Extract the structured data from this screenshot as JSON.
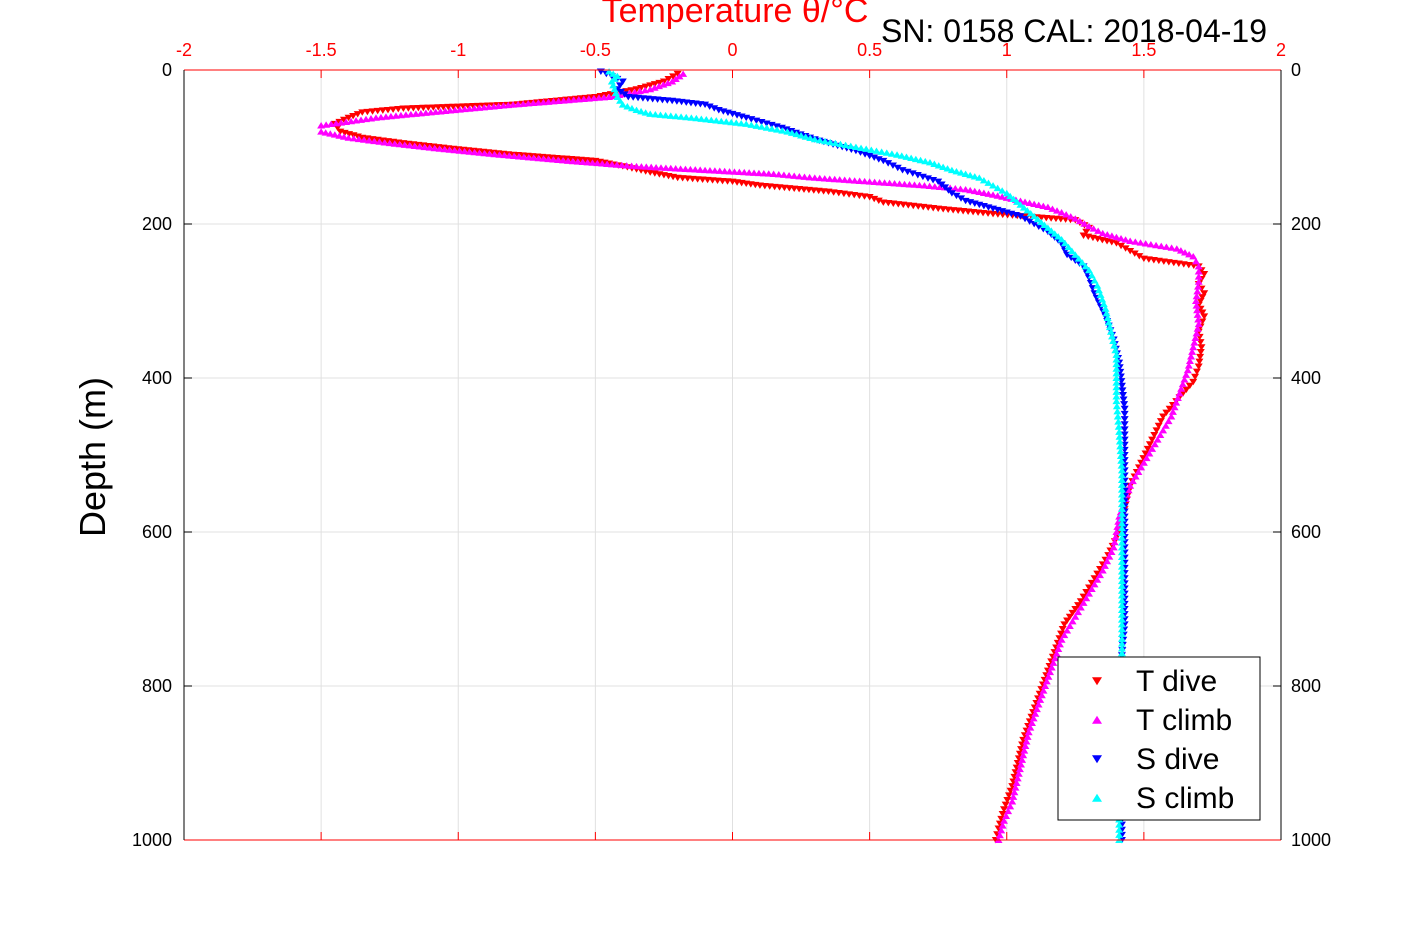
{
  "chart_data": {
    "type": "scatter",
    "title": "Temperature θ/°C",
    "subtitle": "SN: 0158  CAL: 2018-04-19",
    "xlabel": "Temperature θ/°C",
    "ylabel": "Depth (m)",
    "xlim": [
      -2,
      2
    ],
    "ylim": [
      0,
      1000
    ],
    "y_inverted": true,
    "xticks": [
      "-2",
      "-1.5",
      "-1",
      "-0.5",
      "0",
      "0.5",
      "1",
      "1.5",
      "2"
    ],
    "yticks": [
      "0",
      "200",
      "400",
      "600",
      "800",
      "1000"
    ],
    "grid": true,
    "legend_position": "bottom-right",
    "colors": {
      "axis_top": "#ff0000",
      "t_dive": "#ff0000",
      "t_climb": "#ff00ff",
      "s_dive": "#0000ff",
      "s_climb": "#00ffff"
    },
    "series": [
      {
        "name": "T dive",
        "marker": "triangle-down",
        "points": [
          [
            -0.2,
            5
          ],
          [
            -0.25,
            15
          ],
          [
            -0.35,
            25
          ],
          [
            -0.5,
            35
          ],
          [
            -0.8,
            45
          ],
          [
            -1.2,
            50
          ],
          [
            -1.35,
            55
          ],
          [
            -1.4,
            62
          ],
          [
            -1.45,
            70
          ],
          [
            -1.43,
            80
          ],
          [
            -1.35,
            88
          ],
          [
            -1.2,
            95
          ],
          [
            -1.0,
            103
          ],
          [
            -0.8,
            110
          ],
          [
            -0.5,
            118
          ],
          [
            -0.4,
            125
          ],
          [
            -0.3,
            133
          ],
          [
            -0.2,
            140
          ],
          [
            0,
            145
          ],
          [
            0.1,
            150
          ],
          [
            0.35,
            158
          ],
          [
            0.5,
            165
          ],
          [
            0.55,
            172
          ],
          [
            0.75,
            180
          ],
          [
            0.95,
            187
          ],
          [
            1.25,
            195
          ],
          [
            1.3,
            205
          ],
          [
            1.28,
            215
          ],
          [
            1.4,
            225
          ],
          [
            1.45,
            235
          ],
          [
            1.5,
            245
          ],
          [
            1.7,
            255
          ],
          [
            1.72,
            265
          ],
          [
            1.7,
            278
          ],
          [
            1.72,
            290
          ],
          [
            1.7,
            305
          ],
          [
            1.72,
            320
          ],
          [
            1.7,
            340
          ],
          [
            1.71,
            360
          ],
          [
            1.7,
            385
          ],
          [
            1.68,
            405
          ],
          [
            1.63,
            425
          ],
          [
            1.57,
            450
          ],
          [
            1.53,
            480
          ],
          [
            1.49,
            510
          ],
          [
            1.45,
            540
          ],
          [
            1.43,
            570
          ],
          [
            1.41,
            600
          ],
          [
            1.37,
            630
          ],
          [
            1.32,
            660
          ],
          [
            1.27,
            690
          ],
          [
            1.21,
            720
          ],
          [
            1.18,
            750
          ],
          [
            1.15,
            780
          ],
          [
            1.12,
            810
          ],
          [
            1.09,
            840
          ],
          [
            1.06,
            870
          ],
          [
            1.04,
            900
          ],
          [
            1.02,
            930
          ],
          [
            0.99,
            960
          ],
          [
            0.97,
            985
          ],
          [
            0.96,
            1000
          ]
        ]
      },
      {
        "name": "T climb",
        "marker": "triangle-up",
        "points": [
          [
            -0.18,
            5
          ],
          [
            -0.22,
            15
          ],
          [
            -0.3,
            25
          ],
          [
            -0.45,
            35
          ],
          [
            -0.8,
            45
          ],
          [
            -1.1,
            55
          ],
          [
            -1.3,
            62
          ],
          [
            -1.5,
            72
          ],
          [
            -1.5,
            80
          ],
          [
            -1.4,
            88
          ],
          [
            -1.25,
            95
          ],
          [
            -1.05,
            103
          ],
          [
            -0.85,
            110
          ],
          [
            -0.6,
            118
          ],
          [
            -0.35,
            125
          ],
          [
            -0.1,
            130
          ],
          [
            0.15,
            135
          ],
          [
            0.3,
            140
          ],
          [
            0.5,
            145
          ],
          [
            0.7,
            150
          ],
          [
            0.85,
            155
          ],
          [
            0.95,
            162
          ],
          [
            1.05,
            170
          ],
          [
            1.15,
            178
          ],
          [
            1.2,
            185
          ],
          [
            1.25,
            193
          ],
          [
            1.3,
            203
          ],
          [
            1.35,
            212
          ],
          [
            1.45,
            222
          ],
          [
            1.62,
            232
          ],
          [
            1.68,
            242
          ],
          [
            1.7,
            255
          ],
          [
            1.7,
            275
          ],
          [
            1.69,
            300
          ],
          [
            1.7,
            330
          ],
          [
            1.68,
            360
          ],
          [
            1.66,
            390
          ],
          [
            1.63,
            420
          ],
          [
            1.6,
            450
          ],
          [
            1.55,
            480
          ],
          [
            1.5,
            510
          ],
          [
            1.45,
            540
          ],
          [
            1.41,
            580
          ],
          [
            1.39,
            620
          ],
          [
            1.35,
            650
          ],
          [
            1.3,
            680
          ],
          [
            1.25,
            710
          ],
          [
            1.2,
            740
          ],
          [
            1.17,
            770
          ],
          [
            1.14,
            800
          ],
          [
            1.11,
            830
          ],
          [
            1.08,
            860
          ],
          [
            1.06,
            890
          ],
          [
            1.04,
            920
          ],
          [
            1.02,
            950
          ],
          [
            0.99,
            975
          ],
          [
            0.97,
            1000
          ]
        ]
      },
      {
        "name": "S dive",
        "marker": "triangle-down",
        "points": [
          [
            -0.48,
            2
          ],
          [
            -0.44,
            8
          ],
          [
            -0.4,
            15
          ],
          [
            -0.42,
            25
          ],
          [
            -0.38,
            35
          ],
          [
            -0.22,
            40
          ],
          [
            -0.1,
            45
          ],
          [
            -0.05,
            52
          ],
          [
            0.05,
            62
          ],
          [
            0.18,
            75
          ],
          [
            0.3,
            90
          ],
          [
            0.45,
            105
          ],
          [
            0.55,
            118
          ],
          [
            0.62,
            130
          ],
          [
            0.75,
            145
          ],
          [
            0.8,
            160
          ],
          [
            0.85,
            170
          ],
          [
            0.95,
            180
          ],
          [
            1.05,
            190
          ],
          [
            1.1,
            200
          ],
          [
            1.15,
            210
          ],
          [
            1.2,
            225
          ],
          [
            1.22,
            240
          ],
          [
            1.28,
            255
          ],
          [
            1.3,
            270
          ],
          [
            1.32,
            290
          ],
          [
            1.36,
            320
          ],
          [
            1.39,
            350
          ],
          [
            1.41,
            380
          ],
          [
            1.42,
            410
          ],
          [
            1.43,
            440
          ],
          [
            1.43,
            480
          ],
          [
            1.43,
            520
          ],
          [
            1.43,
            560
          ],
          [
            1.43,
            600
          ],
          [
            1.43,
            640
          ],
          [
            1.43,
            680
          ],
          [
            1.43,
            720
          ],
          [
            1.42,
            760
          ],
          [
            1.42,
            800
          ],
          [
            1.42,
            840
          ],
          [
            1.42,
            880
          ],
          [
            1.42,
            920
          ],
          [
            1.42,
            960
          ],
          [
            1.42,
            1000
          ]
        ]
      },
      {
        "name": "S climb",
        "marker": "triangle-up",
        "points": [
          [
            -0.45,
            2
          ],
          [
            -0.42,
            8
          ],
          [
            -0.44,
            15
          ],
          [
            -0.43,
            25
          ],
          [
            -0.42,
            35
          ],
          [
            -0.4,
            45
          ],
          [
            -0.35,
            52
          ],
          [
            -0.3,
            57
          ],
          [
            -0.15,
            62
          ],
          [
            0.05,
            70
          ],
          [
            0.2,
            80
          ],
          [
            0.3,
            90
          ],
          [
            0.45,
            100
          ],
          [
            0.6,
            110
          ],
          [
            0.72,
            120
          ],
          [
            0.8,
            130
          ],
          [
            0.9,
            140
          ],
          [
            0.95,
            150
          ],
          [
            1.0,
            160
          ],
          [
            1.05,
            175
          ],
          [
            1.1,
            190
          ],
          [
            1.15,
            205
          ],
          [
            1.2,
            220
          ],
          [
            1.25,
            240
          ],
          [
            1.3,
            260
          ],
          [
            1.33,
            280
          ],
          [
            1.36,
            310
          ],
          [
            1.38,
            340
          ],
          [
            1.4,
            370
          ],
          [
            1.4,
            400
          ],
          [
            1.4,
            430
          ],
          [
            1.41,
            470
          ],
          [
            1.42,
            520
          ],
          [
            1.42,
            570
          ],
          [
            1.42,
            620
          ],
          [
            1.42,
            670
          ],
          [
            1.42,
            720
          ],
          [
            1.42,
            770
          ],
          [
            1.41,
            820
          ],
          [
            1.41,
            870
          ],
          [
            1.41,
            920
          ],
          [
            1.41,
            960
          ],
          [
            1.41,
            1000
          ]
        ]
      }
    ]
  }
}
